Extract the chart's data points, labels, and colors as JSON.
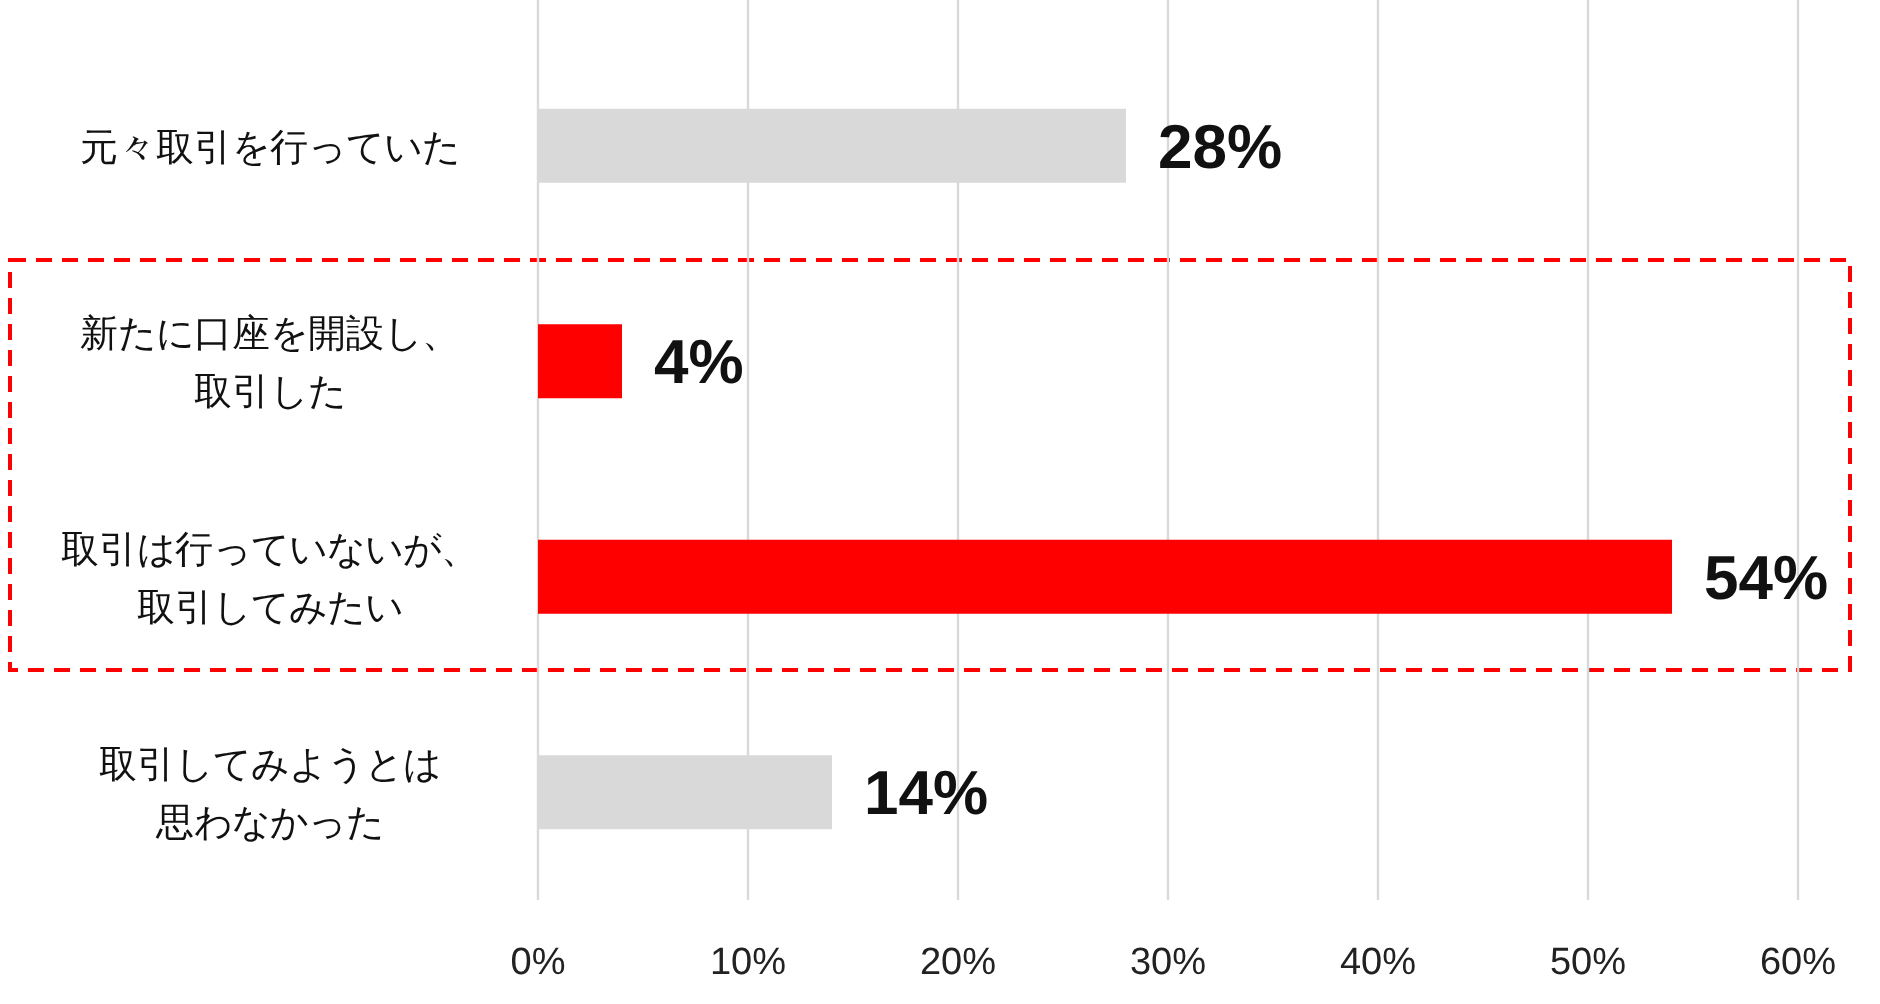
{
  "chart_data": {
    "type": "bar",
    "orientation": "horizontal",
    "categories": [
      "元々取引を行っていた",
      "新たに口座を開設し、取引した",
      "取引は行っていないが、取引してみたい",
      "取引してみようとは思わなかった"
    ],
    "values": [
      28,
      4,
      54,
      14
    ],
    "colors": [
      "#d9d9d9",
      "#ff0000",
      "#ff0000",
      "#d9d9d9"
    ],
    "value_labels": [
      "28%",
      "4%",
      "54%",
      "14%"
    ],
    "xlim": [
      0,
      60
    ],
    "xticks": [
      {
        "value": 0,
        "label": "0%"
      },
      {
        "value": 10,
        "label": "10%"
      },
      {
        "value": 20,
        "label": "20%"
      },
      {
        "value": 30,
        "label": "30%"
      },
      {
        "value": 40,
        "label": "40%"
      },
      {
        "value": 50,
        "label": "50%"
      },
      {
        "value": 60,
        "label": "60%"
      }
    ],
    "grid": "x"
  }
}
